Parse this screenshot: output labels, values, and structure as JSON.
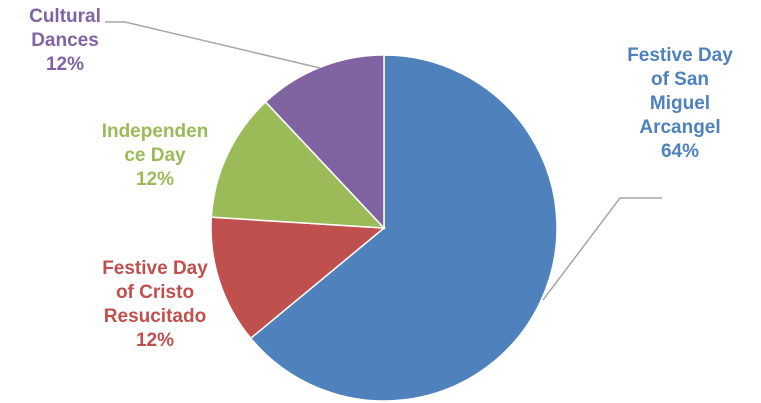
{
  "chart_data": {
    "type": "pie",
    "title": "",
    "slices": [
      {
        "label_lines": [
          "Festive Day",
          "of San",
          "Miguel",
          "Arcangel"
        ],
        "percent_text": "64%",
        "value": 64,
        "color": "#4F81BD"
      },
      {
        "label_lines": [
          "Festive Day",
          "of Cristo",
          "Resucitado"
        ],
        "percent_text": "12%",
        "value": 12,
        "color": "#C0504D"
      },
      {
        "label_lines": [
          "Independen",
          "ce Day"
        ],
        "percent_text": "12%",
        "value": 12,
        "color": "#9BBB59"
      },
      {
        "label_lines": [
          "Cultural",
          "Dances"
        ],
        "percent_text": "12%",
        "value": 12,
        "color": "#8064A2"
      }
    ],
    "start_angle_deg": 0,
    "direction": "clockwise",
    "leader_lines": true,
    "leader_line_color": "#A6A6A6"
  }
}
